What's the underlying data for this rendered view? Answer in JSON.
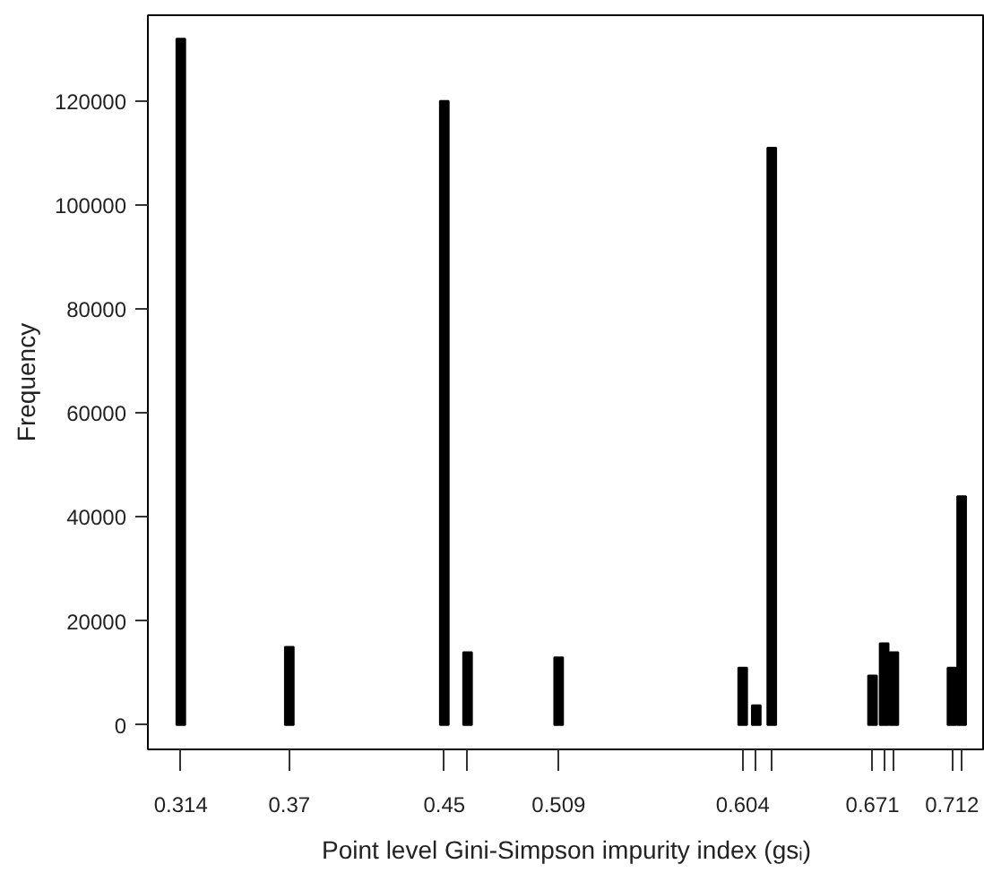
{
  "chart_data": {
    "type": "bar",
    "xlabel": "Point level Gini-Simpson impurity index (gsᵢ)",
    "ylabel": "Frequency",
    "x": [
      0.314,
      0.37,
      0.45,
      0.462,
      0.509,
      0.604,
      0.611,
      0.619,
      0.671,
      0.677,
      0.682,
      0.712,
      0.717
    ],
    "values": [
      132000,
      15000,
      120000,
      14000,
      13000,
      11000,
      3800,
      111000,
      9500,
      15700,
      14000,
      11000,
      44000
    ],
    "color": "#000000",
    "xlim": [
      0.297,
      0.729
    ],
    "ylim": [
      -4700,
      136500
    ],
    "xticks": [
      0.314,
      0.37,
      0.45,
      {
        "value": 0.462,
        "label": null
      },
      0.509,
      0.604,
      {
        "value": 0.611,
        "label": null
      },
      {
        "value": 0.619,
        "label": null
      },
      0.671,
      {
        "value": 0.677,
        "label": null
      },
      {
        "value": 0.682,
        "label": null
      },
      0.712,
      {
        "value": 0.717,
        "label": null
      }
    ],
    "yticks": [
      0,
      20000,
      40000,
      60000,
      80000,
      100000,
      120000
    ],
    "grid": false
  }
}
